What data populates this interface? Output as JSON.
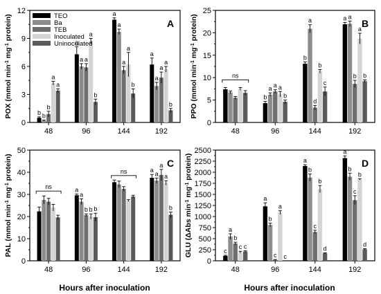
{
  "colors": {
    "TEO": "#000000",
    "Ba": "#8c8c8c",
    "TEB": "#6e6e6e",
    "Inoculated": "#d4d4d4",
    "Uninoculated": "#5a5a5a"
  },
  "x_axis_label": "Hours after inoculation",
  "chart_data": [
    {
      "type": "bar",
      "panel": "A",
      "ylabel": "POX (mmol min⁻¹ mg⁻¹ protein)",
      "ylim": [
        0,
        12
      ],
      "yticks": [
        0,
        3,
        6,
        9,
        12
      ],
      "categories": [
        "48",
        "96",
        "144",
        "192"
      ],
      "legend": [
        "TEO",
        "Ba",
        "TEB",
        "Inoculated",
        "Uninoculated"
      ],
      "legend_position": "top-left",
      "series": [
        {
          "name": "TEO",
          "values": [
            0.5,
            7.3,
            11.0,
            6.2
          ],
          "errors": [
            0.1,
            0.8,
            0.2,
            0.7
          ],
          "letters": [
            "b",
            "a",
            "a",
            "a"
          ]
        },
        {
          "name": "Ba",
          "values": [
            0.2,
            6.0,
            9.7,
            3.9
          ],
          "errors": [
            0.05,
            0.3,
            0.3,
            0.4
          ],
          "letters": [
            "b",
            "a",
            "a",
            "a"
          ]
        },
        {
          "name": "TEB",
          "values": [
            0.9,
            5.9,
            5.6,
            4.8
          ],
          "errors": [
            0.3,
            0.4,
            0.4,
            0.6
          ],
          "letters": [
            "b",
            "a",
            "a",
            "a"
          ]
        },
        {
          "name": "Inoculated",
          "values": [
            4.2,
            8.7,
            6.2,
            5.7
          ],
          "errors": [
            0.2,
            0.3,
            1.3,
            0.3
          ],
          "letters": [
            "a",
            "a",
            "a",
            "a"
          ]
        },
        {
          "name": "Uninoculated",
          "values": [
            3.4,
            2.2,
            3.1,
            1.3
          ],
          "errors": [
            0.2,
            0.3,
            0.5,
            0.2
          ],
          "letters": [
            "a",
            "b",
            "b",
            "b"
          ]
        }
      ],
      "ns": []
    },
    {
      "type": "bar",
      "panel": "B",
      "ylabel": "PPO (mmol min⁻¹ mg⁻¹ protein)",
      "ylim": [
        0,
        25
      ],
      "yticks": [
        0,
        5,
        10,
        15,
        20,
        25
      ],
      "categories": [
        "48",
        "96",
        "144",
        "192"
      ],
      "series": [
        {
          "name": "TEO",
          "values": [
            7.4,
            4.3,
            13.1,
            21.9
          ],
          "errors": [
            0.4,
            0.4,
            0.4,
            0.4
          ],
          "letters": [
            "",
            "b",
            "b",
            "a"
          ]
        },
        {
          "name": "Ba",
          "values": [
            6.7,
            6.2,
            20.9,
            22.0
          ],
          "errors": [
            0.3,
            0.4,
            0.9,
            0.6
          ],
          "letters": [
            "",
            "a",
            "a",
            "a"
          ]
        },
        {
          "name": "TEB",
          "values": [
            5.5,
            6.9,
            3.3,
            8.6
          ],
          "errors": [
            0.3,
            0.4,
            0.5,
            0.8
          ],
          "letters": [
            "",
            "a",
            "d",
            "b"
          ]
        },
        {
          "name": "Inoculated",
          "values": [
            7.5,
            6.3,
            11.4,
            18.7
          ],
          "errors": [
            0.3,
            0.6,
            0.4,
            1.2
          ],
          "letters": [
            "",
            "a",
            "b",
            "a"
          ]
        },
        {
          "name": "Uninoculated",
          "values": [
            6.6,
            4.6,
            6.9,
            9.2
          ],
          "errors": [
            0.5,
            0.4,
            1.0,
            0.3
          ],
          "letters": [
            "",
            "b",
            "c",
            "b"
          ]
        }
      ],
      "ns": [
        {
          "category": 0,
          "text": "ns",
          "value": 9.5
        }
      ]
    },
    {
      "type": "bar",
      "panel": "C",
      "ylabel": "PAL (mmol min⁻¹ mg⁻¹ protein)",
      "ylim": [
        0,
        50
      ],
      "yticks": [
        0,
        10,
        20,
        30,
        40,
        50
      ],
      "categories": [
        "48",
        "96",
        "144",
        "192"
      ],
      "series": [
        {
          "name": "TEO",
          "values": [
            22.3,
            29.6,
            35.5,
            37.5
          ],
          "errors": [
            2.0,
            0.6,
            1.0,
            1.5
          ],
          "letters": [
            "",
            "a",
            "",
            "a"
          ]
        },
        {
          "name": "Ba",
          "values": [
            27.5,
            26.7,
            34.5,
            36.2
          ],
          "errors": [
            1.8,
            1.3,
            1.5,
            1.2
          ],
          "letters": [
            "",
            "a",
            "",
            "a"
          ]
        },
        {
          "name": "TEB",
          "values": [
            26.7,
            20.6,
            32.5,
            38.8
          ],
          "errors": [
            1.5,
            0.6,
            1.0,
            2.5
          ],
          "letters": [
            "",
            "b",
            "",
            "a"
          ]
        },
        {
          "name": "Inoculated",
          "values": [
            24.0,
            20.0,
            27.2,
            35.2
          ],
          "errors": [
            1.5,
            1.2,
            0.4,
            1.0
          ],
          "letters": [
            "",
            "b",
            "",
            "a"
          ]
        },
        {
          "name": "Uninoculated",
          "values": [
            19.6,
            19.7,
            29.0,
            20.8
          ],
          "errors": [
            1.0,
            1.8,
            0.6,
            1.2
          ],
          "letters": [
            "",
            "b",
            "",
            "b"
          ]
        }
      ],
      "ns": [
        {
          "category": 0,
          "text": "ns",
          "value": 31.5
        },
        {
          "category": 2,
          "text": "ns",
          "value": 38.5
        }
      ]
    },
    {
      "type": "bar",
      "panel": "D",
      "ylabel": "GLU (ΔAbs min⁻¹ mg⁻¹ protein)",
      "ylim": [
        0,
        2500
      ],
      "yticks": [
        0,
        250,
        500,
        750,
        1000,
        1250,
        1500,
        1750,
        2000,
        2250,
        2500
      ],
      "categories": [
        "48",
        "96",
        "144",
        "192"
      ],
      "series": [
        {
          "name": "TEO",
          "values": [
            110,
            1230,
            2140,
            2320
          ],
          "errors": [
            15,
            80,
            30,
            50
          ],
          "letters": [
            "c",
            "a",
            "a",
            "a"
          ]
        },
        {
          "name": "Ba",
          "values": [
            550,
            810,
            1880,
            1900
          ],
          "errors": [
            60,
            40,
            80,
            80
          ],
          "letters": [
            "a",
            "b",
            "b",
            "b"
          ]
        },
        {
          "name": "TEB",
          "values": [
            390,
            20,
            650,
            1370
          ],
          "errors": [
            30,
            10,
            40,
            100
          ],
          "letters": [
            "b",
            "c",
            "c",
            "c"
          ]
        },
        {
          "name": "Inoculated",
          "values": [
            195,
            1090,
            1620,
            1840
          ],
          "errors": [
            20,
            40,
            80,
            15
          ],
          "letters": [
            "c",
            "a",
            "b",
            "b"
          ]
        },
        {
          "name": "Uninoculated",
          "values": [
            210,
            0,
            170,
            260
          ],
          "errors": [
            15,
            0,
            10,
            15
          ],
          "letters": [
            "c",
            "c",
            "d",
            "d"
          ]
        }
      ],
      "ns": []
    }
  ]
}
